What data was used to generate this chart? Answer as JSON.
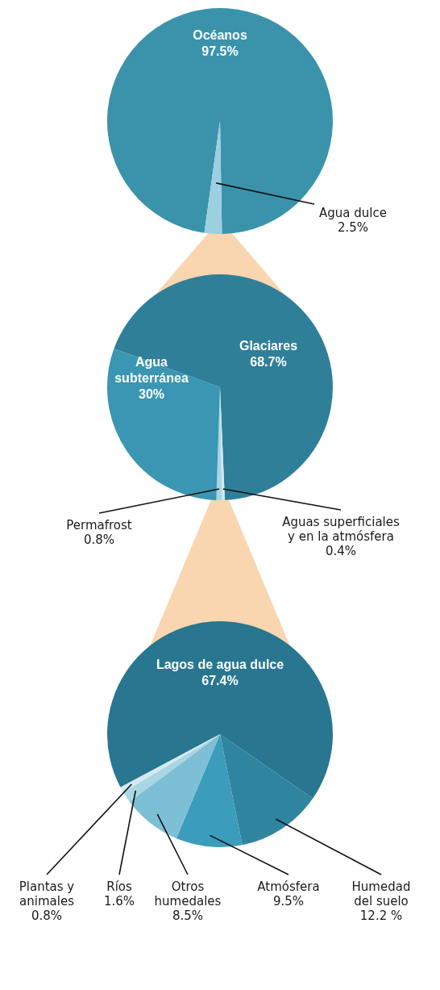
{
  "chart_data": [
    {
      "type": "pie",
      "categories": [
        "Océanos",
        "Agua dulce"
      ],
      "values": [
        97.5,
        2.5
      ],
      "colors": [
        "#3a93ab",
        "#9ccfe0"
      ],
      "value_labels": [
        "97.5%",
        "2.5%"
      ]
    },
    {
      "type": "pie",
      "categories": [
        "Glaciares",
        "Aguas superficiales y en la atmósfera",
        "Permafrost",
        "Agua subterránea"
      ],
      "values": [
        68.7,
        0.4,
        0.8,
        30
      ],
      "colors": [
        "#2f7f99",
        "#d3eaf1",
        "#a9d6e4",
        "#3a96b2"
      ],
      "value_labels": [
        "68.7%",
        "0.4%",
        "0.8%",
        "30%"
      ]
    },
    {
      "type": "pie",
      "categories": [
        "Lagos de agua dulce",
        "Humedad del suelo",
        "Atmósfera",
        "Otros humedales",
        "Ríos",
        "Plantas y animales"
      ],
      "values": [
        67.4,
        12.2,
        9.5,
        8.5,
        1.6,
        0.8
      ],
      "colors": [
        "#287690",
        "#2f84a0",
        "#3b9cbb",
        "#7dbfd4",
        "#a9d6e4",
        "#d3eaf1"
      ],
      "value_labels": [
        "67.4%",
        "12.2 %",
        "9.5%",
        "8.5%",
        "1.6%",
        "0.8%"
      ]
    }
  ]
}
